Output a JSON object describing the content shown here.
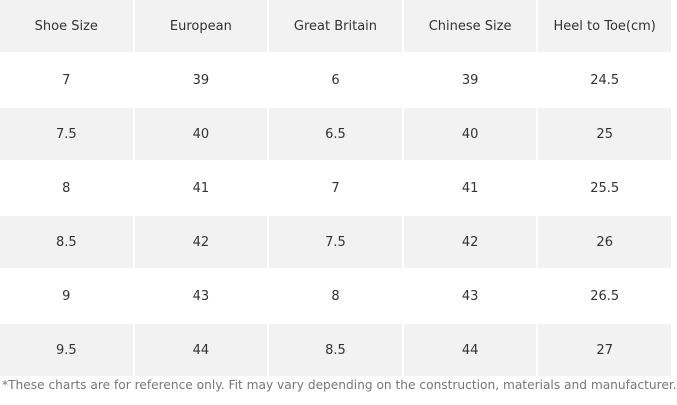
{
  "table": {
    "header": [
      "Shoe Size",
      "European",
      "Great Britain",
      "Chinese Size",
      "Heel to Toe(cm)"
    ],
    "rows": [
      [
        "7",
        "39",
        "6",
        "39",
        "24.5"
      ],
      [
        "7.5",
        "40",
        "6.5",
        "40",
        "25"
      ],
      [
        "8",
        "41",
        "7",
        "41",
        "25.5"
      ],
      [
        "8.5",
        "42",
        "7.5",
        "42",
        "26"
      ],
      [
        "9",
        "43",
        "8",
        "43",
        "26.5"
      ],
      [
        "9.5",
        "44",
        "8.5",
        "44",
        "27"
      ]
    ]
  },
  "footnote": "*These charts are for reference only. Fit may vary depending on the construction, materials and manufacturer."
}
